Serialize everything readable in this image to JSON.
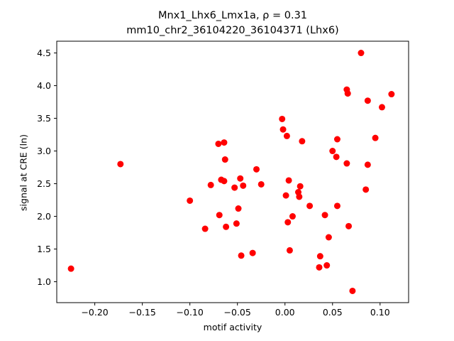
{
  "chart_data": {
    "type": "scatter",
    "title_line1": "Mnx1_Lhx6_Lmx1a, ρ = 0.31",
    "title_line2": "mm10_chr2_36104220_36104371 (Lhx6)",
    "xlabel": "motif activity",
    "ylabel": "signal at CRE (ln)",
    "xlim": [
      -0.24,
      0.13
    ],
    "ylim": [
      0.68,
      4.68
    ],
    "xticks": [
      -0.2,
      -0.15,
      -0.1,
      -0.05,
      0.0,
      0.05,
      0.1
    ],
    "xtick_labels": [
      "−0.20",
      "−0.15",
      "−0.10",
      "−0.05",
      "0.00",
      "0.05",
      "0.10"
    ],
    "yticks": [
      1.0,
      1.5,
      2.0,
      2.5,
      3.0,
      3.5,
      4.0,
      4.5
    ],
    "ytick_labels": [
      "1.0",
      "1.5",
      "2.0",
      "2.5",
      "3.0",
      "3.5",
      "4.0",
      "4.5"
    ],
    "grid": false,
    "marker_color": "#ff0000",
    "points": [
      {
        "x": -0.225,
        "y": 1.2
      },
      {
        "x": -0.173,
        "y": 2.8
      },
      {
        "x": -0.1,
        "y": 2.24
      },
      {
        "x": -0.084,
        "y": 1.81
      },
      {
        "x": -0.078,
        "y": 2.48
      },
      {
        "x": -0.07,
        "y": 3.11
      },
      {
        "x": -0.069,
        "y": 2.02
      },
      {
        "x": -0.067,
        "y": 2.56
      },
      {
        "x": -0.064,
        "y": 3.13
      },
      {
        "x": -0.064,
        "y": 2.54
      },
      {
        "x": -0.063,
        "y": 2.87
      },
      {
        "x": -0.062,
        "y": 1.84
      },
      {
        "x": -0.053,
        "y": 2.44
      },
      {
        "x": -0.051,
        "y": 1.89
      },
      {
        "x": -0.049,
        "y": 2.12
      },
      {
        "x": -0.047,
        "y": 2.58
      },
      {
        "x": -0.046,
        "y": 1.4
      },
      {
        "x": -0.044,
        "y": 2.47
      },
      {
        "x": -0.034,
        "y": 1.44
      },
      {
        "x": -0.03,
        "y": 2.72
      },
      {
        "x": -0.025,
        "y": 2.49
      },
      {
        "x": -0.003,
        "y": 3.49
      },
      {
        "x": -0.002,
        "y": 3.33
      },
      {
        "x": 0.001,
        "y": 2.32
      },
      {
        "x": 0.002,
        "y": 3.23
      },
      {
        "x": 0.003,
        "y": 1.91
      },
      {
        "x": 0.004,
        "y": 2.55
      },
      {
        "x": 0.005,
        "y": 1.48
      },
      {
        "x": 0.008,
        "y": 2.0
      },
      {
        "x": 0.014,
        "y": 2.37
      },
      {
        "x": 0.015,
        "y": 2.3
      },
      {
        "x": 0.016,
        "y": 2.46
      },
      {
        "x": 0.018,
        "y": 3.15
      },
      {
        "x": 0.026,
        "y": 2.16
      },
      {
        "x": 0.036,
        "y": 1.22
      },
      {
        "x": 0.037,
        "y": 1.39
      },
      {
        "x": 0.042,
        "y": 2.02
      },
      {
        "x": 0.044,
        "y": 1.25
      },
      {
        "x": 0.046,
        "y": 1.68
      },
      {
        "x": 0.05,
        "y": 3.0
      },
      {
        "x": 0.054,
        "y": 2.91
      },
      {
        "x": 0.055,
        "y": 3.18
      },
      {
        "x": 0.055,
        "y": 2.16
      },
      {
        "x": 0.065,
        "y": 2.81
      },
      {
        "x": 0.065,
        "y": 3.94
      },
      {
        "x": 0.066,
        "y": 3.88
      },
      {
        "x": 0.067,
        "y": 1.85
      },
      {
        "x": 0.071,
        "y": 0.86
      },
      {
        "x": 0.08,
        "y": 4.5
      },
      {
        "x": 0.085,
        "y": 2.41
      },
      {
        "x": 0.087,
        "y": 3.77
      },
      {
        "x": 0.087,
        "y": 2.79
      },
      {
        "x": 0.095,
        "y": 3.2
      },
      {
        "x": 0.102,
        "y": 3.67
      },
      {
        "x": 0.112,
        "y": 3.87
      }
    ]
  }
}
